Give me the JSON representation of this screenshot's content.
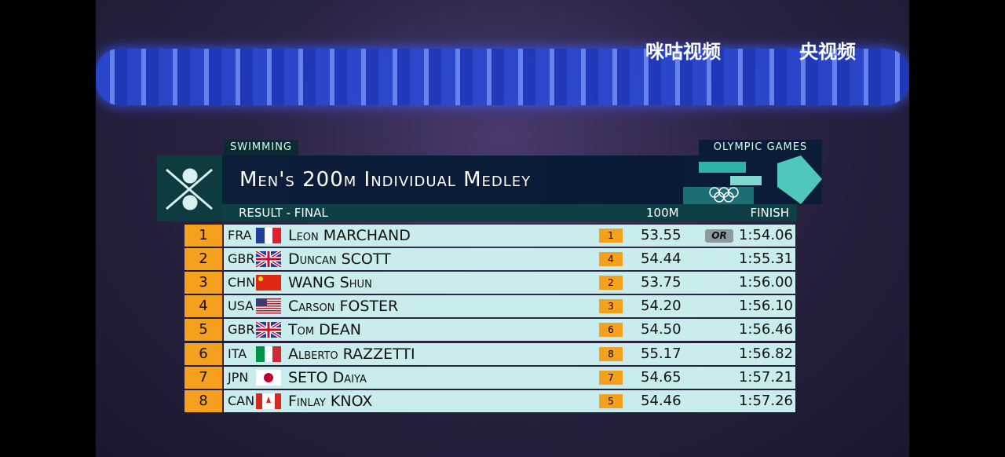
{
  "broadcaster": {
    "logo_left": "咪咕视频",
    "logo_right": "央视频"
  },
  "header": {
    "sport": "SWIMMING",
    "event_brand": "OLYMPIC GAMES",
    "title": "Men's 200m Individual Medley",
    "subtitle": "RESULT - FINAL",
    "col_split": "100M",
    "col_finish": "FINISH"
  },
  "table": {
    "rows": [
      {
        "rank": 1,
        "country": "FRA",
        "name": "Leon MARCHAND",
        "split_rank": 1,
        "split": "53.55",
        "record": "OR",
        "finish": "1:54.06"
      },
      {
        "rank": 2,
        "country": "GBR",
        "name": "Duncan SCOTT",
        "split_rank": 4,
        "split": "54.44",
        "finish": "1:55.31"
      },
      {
        "rank": 3,
        "country": "CHN",
        "name": "WANG Shun",
        "split_rank": 2,
        "split": "53.75",
        "finish": "1:56.00"
      },
      {
        "rank": 4,
        "country": "USA",
        "name": "Carson FOSTER",
        "split_rank": 3,
        "split": "54.20",
        "finish": "1:56.10"
      },
      {
        "rank": 5,
        "country": "GBR",
        "name": "Tom DEAN",
        "split_rank": 6,
        "split": "54.50",
        "finish": "1:56.46"
      },
      {
        "rank": 6,
        "country": "ITA",
        "name": "Alberto RAZZETTI",
        "split_rank": 8,
        "split": "55.17",
        "finish": "1:56.82"
      },
      {
        "rank": 7,
        "country": "JPN",
        "name": "SETO Daiya",
        "split_rank": 7,
        "split": "54.65",
        "finish": "1:57.21"
      },
      {
        "rank": 8,
        "country": "CAN",
        "name": "Finlay KNOX",
        "split_rank": 5,
        "split": "54.46",
        "finish": "1:57.26"
      }
    ]
  }
}
